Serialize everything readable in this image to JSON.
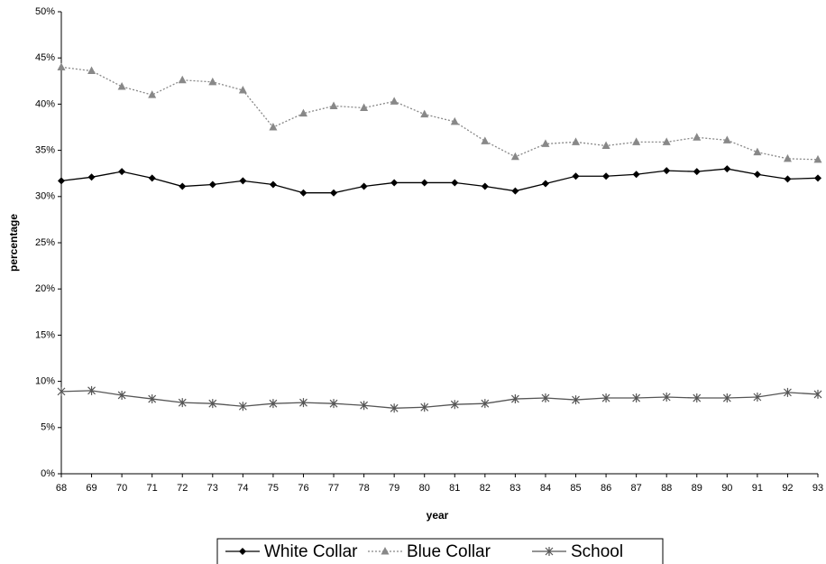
{
  "chart_data": {
    "type": "line",
    "x_label": "year",
    "y_label": "percentage",
    "categories": [
      "68",
      "69",
      "70",
      "71",
      "72",
      "73",
      "74",
      "75",
      "76",
      "77",
      "78",
      "79",
      "80",
      "81",
      "82",
      "83",
      "84",
      "85",
      "86",
      "87",
      "88",
      "89",
      "90",
      "91",
      "92",
      "93"
    ],
    "ylim": [
      0,
      50
    ],
    "yticks": [
      {
        "value": 0,
        "label": "0%"
      },
      {
        "value": 5,
        "label": "5%"
      },
      {
        "value": 10,
        "label": "10%"
      },
      {
        "value": 15,
        "label": "15%"
      },
      {
        "value": 20,
        "label": "20%"
      },
      {
        "value": 25,
        "label": "25%"
      },
      {
        "value": 30,
        "label": "30%"
      },
      {
        "value": 35,
        "label": "35%"
      },
      {
        "value": 40,
        "label": "40%"
      },
      {
        "value": 45,
        "label": "45%"
      },
      {
        "value": 50,
        "label": "50%"
      }
    ],
    "grid": false,
    "legend": "bottom",
    "series": [
      {
        "name": "White Collar",
        "color": "#000000",
        "marker": "diamond",
        "dash": "solid",
        "values": [
          31.7,
          32.1,
          32.7,
          32.0,
          31.1,
          31.3,
          31.7,
          31.3,
          30.4,
          30.4,
          31.1,
          31.5,
          31.5,
          31.5,
          31.1,
          30.6,
          31.4,
          32.2,
          32.2,
          32.4,
          32.8,
          32.7,
          33.0,
          32.4,
          31.9,
          32.0
        ]
      },
      {
        "name": "Blue Collar",
        "color": "#888888",
        "marker": "triangle",
        "dash": "dotted",
        "values": [
          44.0,
          43.6,
          41.9,
          41.0,
          42.6,
          42.4,
          41.5,
          37.5,
          39.0,
          39.8,
          39.6,
          40.3,
          38.9,
          38.1,
          36.0,
          34.3,
          35.7,
          35.9,
          35.5,
          35.9,
          35.9,
          36.4,
          36.1,
          34.8,
          34.1,
          34.0
        ]
      },
      {
        "name": "School",
        "color": "#555555",
        "marker": "asterisk",
        "dash": "solid",
        "values": [
          8.9,
          9.0,
          8.5,
          8.1,
          7.7,
          7.6,
          7.3,
          7.6,
          7.7,
          7.6,
          7.4,
          7.1,
          7.2,
          7.5,
          7.6,
          8.1,
          8.2,
          8.0,
          8.2,
          8.2,
          8.3,
          8.2,
          8.2,
          8.3,
          8.8,
          8.6
        ]
      }
    ]
  }
}
